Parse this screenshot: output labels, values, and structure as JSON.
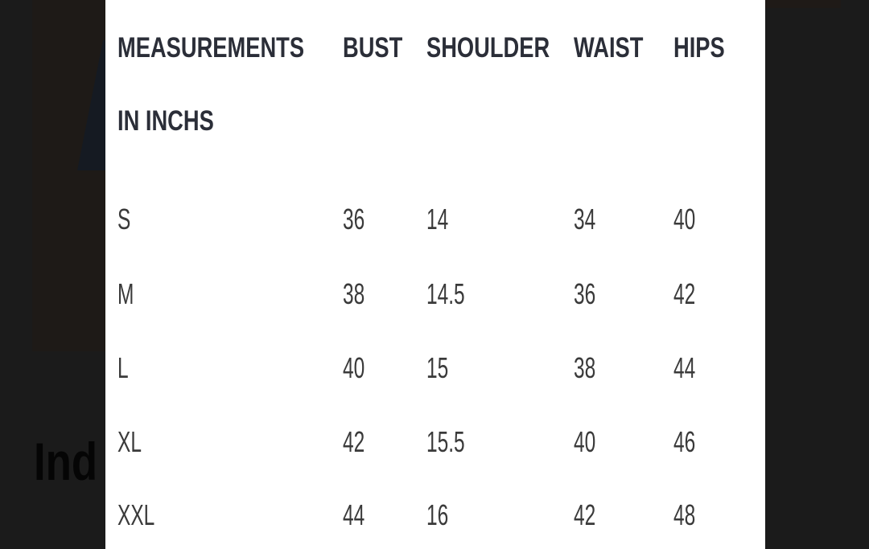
{
  "background": {
    "title_fragment": "Ind"
  },
  "size_chart": {
    "headers": [
      "MEASUREMENTS",
      "BUST",
      "SHOULDER",
      "WAIST",
      "HIPS"
    ],
    "header_sub": "IN INCHS",
    "rows": [
      [
        "S",
        "36",
        "14",
        "34",
        "40"
      ],
      [
        "M",
        "38",
        "14.5",
        "36",
        "42"
      ],
      [
        "L",
        "40",
        "15",
        "38",
        "44"
      ],
      [
        "XL",
        "42",
        "15.5",
        "40",
        "46"
      ],
      [
        "XXL",
        "44",
        "16",
        "42",
        "48"
      ]
    ]
  }
}
